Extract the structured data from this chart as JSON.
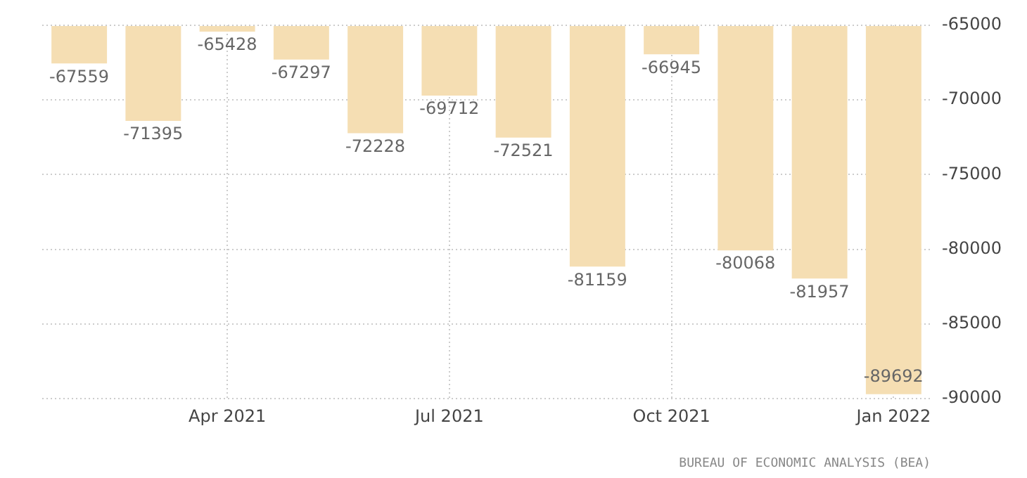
{
  "chart_data": {
    "type": "bar",
    "categories": [
      null,
      null,
      "Apr 2021",
      null,
      null,
      "Jul 2021",
      null,
      null,
      "Oct 2021",
      null,
      null,
      "Jan 2022"
    ],
    "values": [
      -67559,
      -71395,
      -65428,
      -67297,
      -72228,
      -69712,
      -72521,
      -81159,
      -66945,
      -80068,
      -81957,
      -89692
    ],
    "color": "#f5deb3",
    "ylim": [
      -90000,
      -65000
    ],
    "yticks": [
      -90000,
      -85000,
      -80000,
      -75000,
      -70000,
      -65000
    ],
    "grid": true,
    "data_labels": true,
    "annotations": [
      "BUREAU OF ECONOMIC ANALYSIS (BEA)"
    ]
  }
}
